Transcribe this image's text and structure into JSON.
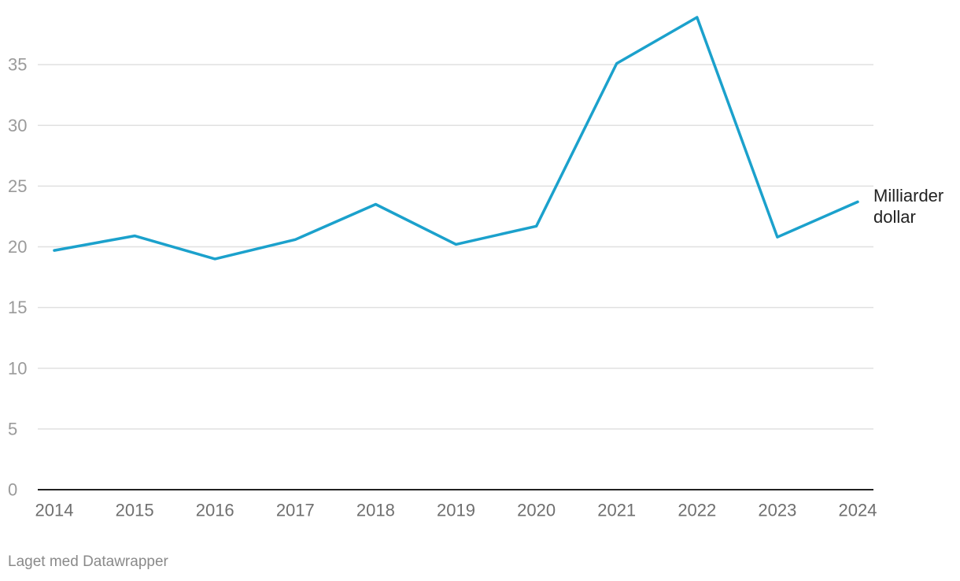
{
  "chart_data": {
    "type": "line",
    "x": [
      "2014",
      "2015",
      "2016",
      "2017",
      "2018",
      "2019",
      "2020",
      "2021",
      "2022",
      "2023",
      "2024"
    ],
    "series": [
      {
        "name": "Milliarder dollar",
        "name_lines": [
          "Milliarder",
          "dollar"
        ],
        "values": [
          19.7,
          20.9,
          19.0,
          20.6,
          23.5,
          20.2,
          21.7,
          35.1,
          38.9,
          20.8,
          23.7
        ],
        "color": "#1ba1cc"
      }
    ],
    "yticks": [
      "0",
      "5",
      "10",
      "15",
      "20",
      "25",
      "30",
      "35"
    ],
    "ylim": [
      0,
      38.9
    ],
    "grid": true,
    "legend": "inline-end-label"
  },
  "footer": {
    "credit": "Laget med Datawrapper"
  }
}
